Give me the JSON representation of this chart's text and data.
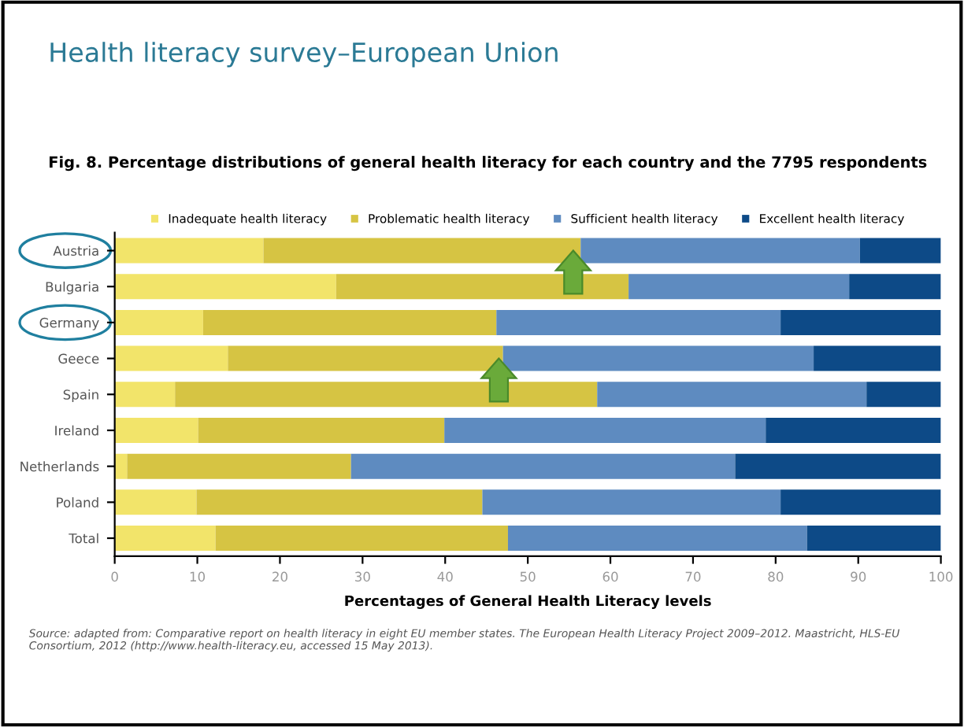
{
  "chart_data": {
    "type": "bar",
    "orientation": "horizontal",
    "stacked": true,
    "title": "Health literacy survey–European Union",
    "subtitle": "Fig. 8. Percentage distributions of general health literacy for each country and the 7795 respondents",
    "xlabel": "Percentages of General Health Literacy levels",
    "categories": [
      "Austria",
      "Bulgaria",
      "Germany",
      "Geece",
      "Spain",
      "Ireland",
      "Netherlands",
      "Poland",
      "Total"
    ],
    "series": [
      {
        "name": "Inadequate health literacy",
        "color": "#f2e46a",
        "values": [
          18.0,
          26.8,
          10.7,
          13.7,
          7.3,
          10.1,
          1.5,
          9.9,
          12.2
        ]
      },
      {
        "name": "Problematic health literacy",
        "color": "#d6c443",
        "values": [
          38.4,
          35.4,
          35.5,
          33.3,
          51.1,
          29.8,
          27.1,
          34.6,
          35.4
        ]
      },
      {
        "name": "Sufficient health literacy",
        "color": "#5e8bc0",
        "values": [
          33.8,
          26.7,
          34.4,
          37.6,
          32.6,
          38.9,
          46.5,
          36.1,
          36.2
        ]
      },
      {
        "name": "Excellent health literacy",
        "color": "#0d4a87",
        "values": [
          9.8,
          11.1,
          19.4,
          15.4,
          9.0,
          21.2,
          24.9,
          19.4,
          16.2
        ]
      }
    ],
    "xlim": [
      0,
      100
    ],
    "xticks": [
      0,
      10,
      20,
      30,
      40,
      50,
      60,
      70,
      80,
      90,
      100
    ],
    "grid": false,
    "legend": "top",
    "annotations": [
      "Source: adapted from: Comparative report on health literacy in eight EU member states. The European Health Literacy Project 2009–2012. Maastricht, HLS-EU Consortium, 2012 (http://www.health-literacy.eu, accessed 15 May 2013)."
    ]
  }
}
